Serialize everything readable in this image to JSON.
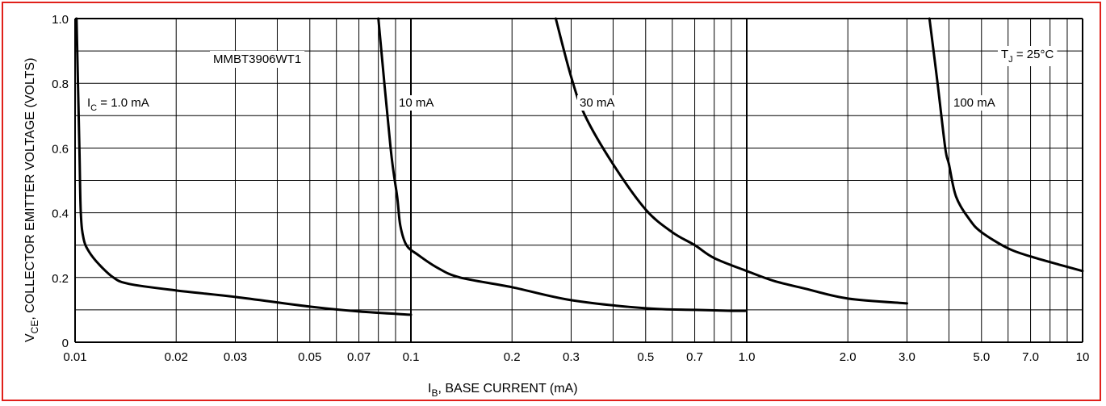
{
  "chart_data": {
    "type": "line",
    "x_scale": "log",
    "xlim": [
      0.01,
      10
    ],
    "ylim": [
      0,
      1.0
    ],
    "grid": true,
    "frame_color": "#e0201a",
    "line_color": "#000000",
    "x_ticks": [
      {
        "v": 0.01,
        "label": "0.01"
      },
      {
        "v": 0.02,
        "label": "0.02"
      },
      {
        "v": 0.03,
        "label": "0.03"
      },
      {
        "v": 0.05,
        "label": "0.05"
      },
      {
        "v": 0.07,
        "label": "0.07"
      },
      {
        "v": 0.1,
        "label": "0.1"
      },
      {
        "v": 0.2,
        "label": "0.2"
      },
      {
        "v": 0.3,
        "label": "0.3"
      },
      {
        "v": 0.5,
        "label": "0.5"
      },
      {
        "v": 0.7,
        "label": "0.7"
      },
      {
        "v": 1.0,
        "label": "1.0"
      },
      {
        "v": 2.0,
        "label": "2.0"
      },
      {
        "v": 3.0,
        "label": "3.0"
      },
      {
        "v": 5.0,
        "label": "5.0"
      },
      {
        "v": 7.0,
        "label": "7.0"
      },
      {
        "v": 10,
        "label": "10"
      }
    ],
    "y_ticks": [
      {
        "v": 0,
        "label": "0"
      },
      {
        "v": 0.2,
        "label": "0.2"
      },
      {
        "v": 0.4,
        "label": "0.4"
      },
      {
        "v": 0.6,
        "label": "0.6"
      },
      {
        "v": 0.8,
        "label": "0.8"
      },
      {
        "v": 1.0,
        "label": "1.0"
      }
    ],
    "xlabel": {
      "main": "I",
      "sub": "B",
      "rest": ", BASE CURRENT (mA)"
    },
    "ylabel": {
      "main": "V",
      "sub": "CE",
      "rest": ", COLLECTOR EMITTER VOLTAGE (VOLTS)"
    },
    "annotations": {
      "part": "MMBT3906WT1",
      "tj": {
        "main": "T",
        "sub": "J",
        "rest": " = 25°C"
      }
    },
    "series": [
      {
        "name": "1.0 mA",
        "label_main": "I",
        "label_sub": "C",
        "label_rest": " = 1.0 mA",
        "points": [
          [
            0.0101,
            1.0
          ],
          [
            0.0103,
            0.6
          ],
          [
            0.0104,
            0.4
          ],
          [
            0.0106,
            0.32
          ],
          [
            0.011,
            0.28
          ],
          [
            0.0118,
            0.24
          ],
          [
            0.013,
            0.2
          ],
          [
            0.0145,
            0.18
          ],
          [
            0.02,
            0.16
          ],
          [
            0.03,
            0.14
          ],
          [
            0.05,
            0.11
          ],
          [
            0.07,
            0.095
          ],
          [
            0.1,
            0.085
          ]
        ]
      },
      {
        "name": "10 mA",
        "label_main": "",
        "label_sub": "",
        "label_rest": "10 mA",
        "points": [
          [
            0.08,
            1.0
          ],
          [
            0.087,
            0.6
          ],
          [
            0.091,
            0.45
          ],
          [
            0.093,
            0.36
          ],
          [
            0.097,
            0.3
          ],
          [
            0.105,
            0.27
          ],
          [
            0.12,
            0.23
          ],
          [
            0.14,
            0.2
          ],
          [
            0.2,
            0.17
          ],
          [
            0.3,
            0.13
          ],
          [
            0.5,
            0.105
          ],
          [
            0.7,
            0.1
          ],
          [
            0.9,
            0.097
          ],
          [
            0.99,
            0.097
          ]
        ]
      },
      {
        "name": "30 mA",
        "label_main": "",
        "label_sub": "",
        "label_rest": "30 mA",
        "points": [
          [
            0.27,
            1.0
          ],
          [
            0.3,
            0.82
          ],
          [
            0.33,
            0.7
          ],
          [
            0.4,
            0.55
          ],
          [
            0.5,
            0.41
          ],
          [
            0.6,
            0.34
          ],
          [
            0.7,
            0.3
          ],
          [
            0.8,
            0.26
          ],
          [
            1.0,
            0.22
          ],
          [
            1.2,
            0.19
          ],
          [
            1.5,
            0.165
          ],
          [
            2.0,
            0.135
          ],
          [
            3.0,
            0.12
          ]
        ]
      },
      {
        "name": "100 mA",
        "label_main": "",
        "label_sub": "",
        "label_rest": "100 mA",
        "points": [
          [
            3.5,
            1.0
          ],
          [
            3.7,
            0.8
          ],
          [
            3.9,
            0.6
          ],
          [
            4.0,
            0.55
          ],
          [
            4.2,
            0.45
          ],
          [
            4.6,
            0.38
          ],
          [
            5.0,
            0.34
          ],
          [
            6.0,
            0.29
          ],
          [
            7.0,
            0.265
          ],
          [
            8.5,
            0.24
          ],
          [
            10,
            0.22
          ]
        ]
      }
    ]
  }
}
